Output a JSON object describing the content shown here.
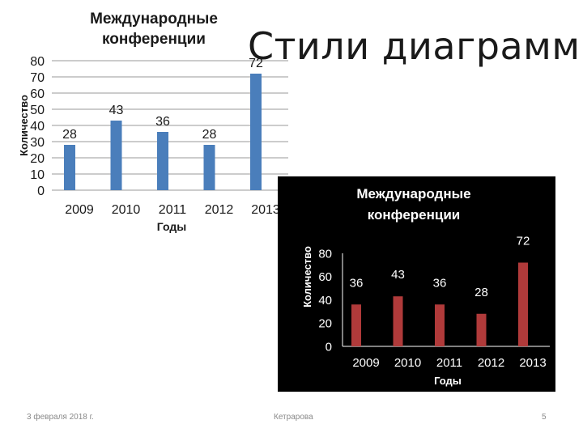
{
  "slide": {
    "title": "Стили диаграмм",
    "footer_date": "3 февраля 2018 г.",
    "footer_author": "Кетрарова",
    "page_number": "5"
  },
  "chart_data": [
    {
      "type": "bar",
      "title": "Международные конференции",
      "xlabel": "Годы",
      "ylabel": "Количество",
      "categories": [
        "2009",
        "2010",
        "2011",
        "2012",
        "2013"
      ],
      "values": [
        28,
        43,
        36,
        28,
        72
      ],
      "yticks": [
        "0",
        "10",
        "20",
        "30",
        "40",
        "50",
        "60",
        "70",
        "80"
      ],
      "ylim": [
        0,
        80
      ],
      "grid": true,
      "legend": "none",
      "colors": {
        "bar": "#4a7ebb",
        "background": "#ffffff",
        "text": "#1a1a1a",
        "grid": "#9a9a9a"
      }
    },
    {
      "type": "bar",
      "title": "Международные конференции",
      "xlabel": "Годы",
      "ylabel": "Количество",
      "categories": [
        "2009",
        "2010",
        "2011",
        "2012",
        "2013"
      ],
      "values": [
        36,
        43,
        36,
        28,
        72
      ],
      "yticks": [
        "0",
        "20",
        "40",
        "60",
        "80"
      ],
      "ylim": [
        0,
        80
      ],
      "grid": false,
      "legend": "none",
      "colors": {
        "bar": "#b03a3a",
        "background": "#000000",
        "text": "#ffffff",
        "axis": "#ffffff"
      }
    }
  ]
}
